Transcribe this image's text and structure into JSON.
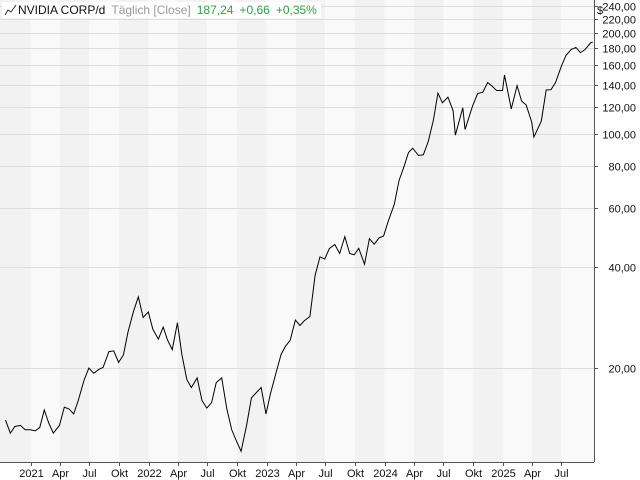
{
  "legend": {
    "symbol": "NVIDIA CORP/d",
    "period": "Täglich [Close]",
    "last": "187,24",
    "change": "+0,66",
    "change_pct": "+0,35%",
    "positive_color": "#2ea043",
    "icon": "line-chart-icon"
  },
  "chart_data": {
    "type": "line",
    "scale": "log",
    "currency": "$",
    "series": [
      {
        "values": [
          [
            "2020-10-15",
            14.0
          ],
          [
            "2020-10-30",
            12.8
          ],
          [
            "2020-11-13",
            13.4
          ],
          [
            "2020-11-30",
            13.5
          ],
          [
            "2020-12-15",
            13.1
          ],
          [
            "2020-12-31",
            13.1
          ],
          [
            "2021-01-15",
            13.0
          ],
          [
            "2021-01-29",
            13.3
          ],
          [
            "2021-02-12",
            15.0
          ],
          [
            "2021-02-26",
            13.7
          ],
          [
            "2021-03-12",
            12.8
          ],
          [
            "2021-03-31",
            13.5
          ],
          [
            "2021-04-15",
            15.3
          ],
          [
            "2021-04-30",
            15.1
          ],
          [
            "2021-05-14",
            14.6
          ],
          [
            "2021-05-28",
            16.0
          ],
          [
            "2021-06-15",
            18.4
          ],
          [
            "2021-06-30",
            20.0
          ],
          [
            "2021-07-15",
            19.3
          ],
          [
            "2021-07-30",
            19.8
          ],
          [
            "2021-08-13",
            20.1
          ],
          [
            "2021-08-31",
            22.4
          ],
          [
            "2021-09-15",
            22.5
          ],
          [
            "2021-09-30",
            20.8
          ],
          [
            "2021-10-15",
            21.9
          ],
          [
            "2021-10-29",
            25.6
          ],
          [
            "2021-11-15",
            29.5
          ],
          [
            "2021-11-30",
            32.6
          ],
          [
            "2021-12-15",
            28.3
          ],
          [
            "2021-12-31",
            29.4
          ],
          [
            "2022-01-14",
            26.1
          ],
          [
            "2022-01-31",
            24.4
          ],
          [
            "2022-02-15",
            26.5
          ],
          [
            "2022-02-28",
            24.3
          ],
          [
            "2022-03-15",
            22.7
          ],
          [
            "2022-03-31",
            27.3
          ],
          [
            "2022-04-14",
            21.9
          ],
          [
            "2022-04-29",
            18.5
          ],
          [
            "2022-05-13",
            17.5
          ],
          [
            "2022-05-31",
            18.7
          ],
          [
            "2022-06-15",
            16.0
          ],
          [
            "2022-06-30",
            15.2
          ],
          [
            "2022-07-15",
            15.8
          ],
          [
            "2022-07-29",
            18.1
          ],
          [
            "2022-08-15",
            18.7
          ],
          [
            "2022-08-31",
            15.1
          ],
          [
            "2022-09-15",
            13.1
          ],
          [
            "2022-09-30",
            12.1
          ],
          [
            "2022-10-14",
            11.3
          ],
          [
            "2022-10-31",
            13.5
          ],
          [
            "2022-11-15",
            16.3
          ],
          [
            "2022-11-30",
            16.9
          ],
          [
            "2022-12-15",
            17.5
          ],
          [
            "2022-12-30",
            14.6
          ],
          [
            "2023-01-13",
            16.8
          ],
          [
            "2023-01-31",
            19.5
          ],
          [
            "2023-02-15",
            22.0
          ],
          [
            "2023-02-28",
            23.2
          ],
          [
            "2023-03-15",
            24.2
          ],
          [
            "2023-03-31",
            27.8
          ],
          [
            "2023-04-14",
            26.8
          ],
          [
            "2023-04-28",
            27.7
          ],
          [
            "2023-05-15",
            28.5
          ],
          [
            "2023-05-31",
            37.8
          ],
          [
            "2023-06-15",
            42.9
          ],
          [
            "2023-06-30",
            42.3
          ],
          [
            "2023-07-14",
            45.4
          ],
          [
            "2023-07-31",
            46.7
          ],
          [
            "2023-08-15",
            43.9
          ],
          [
            "2023-08-31",
            49.3
          ],
          [
            "2023-09-15",
            43.9
          ],
          [
            "2023-09-29",
            43.5
          ],
          [
            "2023-10-13",
            45.5
          ],
          [
            "2023-10-31",
            40.8
          ],
          [
            "2023-11-15",
            48.6
          ],
          [
            "2023-11-30",
            46.8
          ],
          [
            "2023-12-15",
            48.9
          ],
          [
            "2023-12-29",
            49.5
          ],
          [
            "2024-01-12",
            54.7
          ],
          [
            "2024-01-31",
            61.5
          ],
          [
            "2024-02-15",
            72.6
          ],
          [
            "2024-02-29",
            79.1
          ],
          [
            "2024-03-15",
            87.8
          ],
          [
            "2024-03-28",
            90.4
          ],
          [
            "2024-04-15",
            86.0
          ],
          [
            "2024-04-30",
            86.4
          ],
          [
            "2024-05-15",
            94.6
          ],
          [
            "2024-05-31",
            109.6
          ],
          [
            "2024-06-14",
            131.9
          ],
          [
            "2024-06-28",
            123.5
          ],
          [
            "2024-07-15",
            128.4
          ],
          [
            "2024-07-31",
            117.0
          ],
          [
            "2024-08-07",
            98.9
          ],
          [
            "2024-08-30",
            119.4
          ],
          [
            "2024-09-06",
            102.8
          ],
          [
            "2024-09-30",
            121.4
          ],
          [
            "2024-10-15",
            131.6
          ],
          [
            "2024-10-31",
            132.8
          ],
          [
            "2024-11-15",
            141.9
          ],
          [
            "2024-11-29",
            138.3
          ],
          [
            "2024-12-13",
            134.3
          ],
          [
            "2024-12-31",
            134.3
          ],
          [
            "2025-01-06",
            149.4
          ],
          [
            "2025-01-27",
            118.4
          ],
          [
            "2025-02-14",
            138.9
          ],
          [
            "2025-02-28",
            124.9
          ],
          [
            "2025-03-14",
            121.7
          ],
          [
            "2025-03-31",
            108.4
          ],
          [
            "2025-04-07",
            97.6
          ],
          [
            "2025-04-30",
            108.9
          ],
          [
            "2025-05-15",
            134.8
          ],
          [
            "2025-05-30",
            135.1
          ],
          [
            "2025-06-13",
            141.9
          ],
          [
            "2025-06-30",
            157.8
          ],
          [
            "2025-07-15",
            170.7
          ],
          [
            "2025-07-31",
            177.9
          ],
          [
            "2025-08-15",
            180.5
          ],
          [
            "2025-08-29",
            174.2
          ],
          [
            "2025-09-12",
            177.8
          ],
          [
            "2025-09-30",
            186.6
          ],
          [
            "2025-10-06",
            187.24
          ]
        ]
      }
    ],
    "y_ticks": [
      {
        "value": 20,
        "label": "20,00"
      },
      {
        "value": 40,
        "label": "40,00"
      },
      {
        "value": 60,
        "label": "60,00"
      },
      {
        "value": 80,
        "label": "80,00"
      },
      {
        "value": 100,
        "label": "100,00"
      },
      {
        "value": 120,
        "label": "120,00"
      },
      {
        "value": 140,
        "label": "140,00"
      },
      {
        "value": 160,
        "label": "160,00"
      },
      {
        "value": 180,
        "label": "180,00"
      },
      {
        "value": 200,
        "label": "200,00"
      },
      {
        "value": 220,
        "label": "220,00"
      },
      {
        "value": 240,
        "label": "240,00"
      }
    ],
    "ylim": [
      10.5,
      250
    ],
    "xlim": [
      "2020-09-28",
      "2025-10-10"
    ],
    "x_ticks": [
      {
        "date": "2021-01-01",
        "label": "2021"
      },
      {
        "date": "2021-04-01",
        "label": "Apr"
      },
      {
        "date": "2021-07-01",
        "label": "Jul"
      },
      {
        "date": "2021-10-01",
        "label": "Okt"
      },
      {
        "date": "2022-01-01",
        "label": "2022"
      },
      {
        "date": "2022-04-01",
        "label": "Apr"
      },
      {
        "date": "2022-07-01",
        "label": "Jul"
      },
      {
        "date": "2022-10-01",
        "label": "Okt"
      },
      {
        "date": "2023-01-01",
        "label": "2023"
      },
      {
        "date": "2023-04-01",
        "label": "Apr"
      },
      {
        "date": "2023-07-01",
        "label": "Jul"
      },
      {
        "date": "2023-10-01",
        "label": "Okt"
      },
      {
        "date": "2024-01-01",
        "label": "2024"
      },
      {
        "date": "2024-04-01",
        "label": "Apr"
      },
      {
        "date": "2024-07-01",
        "label": "Jul"
      },
      {
        "date": "2024-10-01",
        "label": "Okt"
      },
      {
        "date": "2025-01-01",
        "label": "2025"
      },
      {
        "date": "2025-04-01",
        "label": "Apr"
      },
      {
        "date": "2025-07-01",
        "label": "Jul"
      }
    ],
    "band_colors": [
      "#f2f2f2",
      "#f9f9f9"
    ],
    "line_color": "#000000",
    "grid": true,
    "legend_position": "top-left"
  }
}
